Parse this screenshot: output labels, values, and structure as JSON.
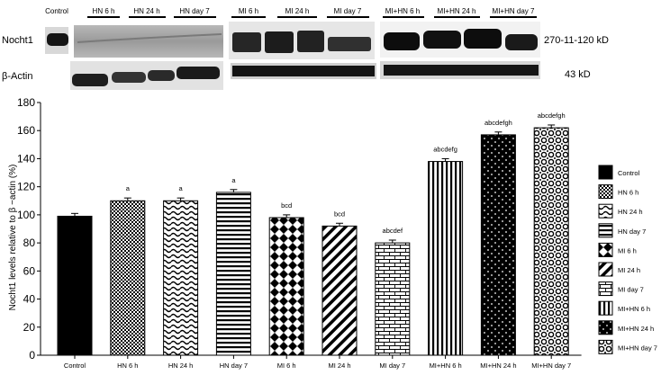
{
  "blot": {
    "lanes": [
      "Control",
      "HN 6 h",
      "HN 24 h",
      "HN day 7",
      "MI 6 h",
      "MI 24 h",
      "MI day 7",
      "MI+HN 6 h",
      "MI+HN 24 h",
      "MI+HN day 7"
    ],
    "rows": [
      {
        "label": "Nocht1",
        "size": "270-11-120 kD"
      },
      {
        "label": "β-Actin",
        "size": "43 kD"
      }
    ]
  },
  "chart_data": {
    "type": "bar",
    "ylabel": "Nocht1 levels relative to β −actin (%)",
    "xlabel": "",
    "ylim": [
      0,
      180
    ],
    "yticks": [
      0,
      20,
      40,
      60,
      80,
      100,
      120,
      140,
      160,
      180
    ],
    "categories": [
      "Control",
      "HN 6 h",
      "HN 24 h",
      "HN day 7",
      "MI 6 h",
      "MI 24 h",
      "MI day 7",
      "MI+HN 6 h",
      "MI+HN 24 h",
      "MI+HN day 7"
    ],
    "values": [
      99,
      110,
      110,
      116,
      98,
      92,
      80,
      138,
      157,
      162
    ],
    "errors": [
      2,
      2,
      2,
      2,
      2,
      2,
      2,
      2,
      2,
      2
    ],
    "annotations": [
      "",
      "a",
      "a",
      "a",
      "bcd",
      "bcd",
      "abcdef",
      "abcdefg",
      "abcdefgh",
      "abcdefgh"
    ],
    "legend_position": "right",
    "legend": [
      "Control",
      "HN 6 h",
      "HN 24 h",
      "HN day 7",
      "MI 6 h",
      "MI 24 h",
      "MI day 7",
      "MI+HN 6 h",
      "MI+HN 24 h",
      "MI+HN day 7"
    ],
    "patterns": [
      "solid",
      "checker",
      "wave",
      "hstripe",
      "diamond",
      "diagonal",
      "brick",
      "vstripe",
      "dots",
      "circles"
    ]
  }
}
